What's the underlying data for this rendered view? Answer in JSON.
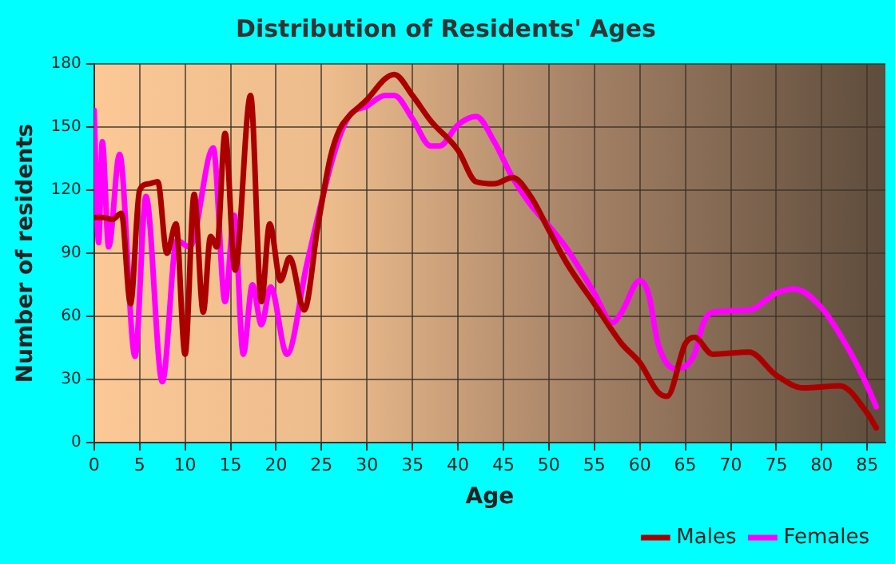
{
  "chart_data": {
    "type": "line",
    "title": "Distribution of Residents' Ages",
    "xlabel": "Age",
    "ylabel": "Number of residents",
    "xlim": [
      0,
      87
    ],
    "xticks": [
      0,
      5,
      10,
      15,
      20,
      25,
      30,
      35,
      40,
      45,
      50,
      55,
      60,
      65,
      70,
      75,
      80,
      85
    ],
    "ylim": [
      0,
      180
    ],
    "yticks": [
      0,
      30,
      60,
      90,
      120,
      150,
      180
    ],
    "grid": true,
    "legend": "bottom right",
    "marker": "none",
    "line_style": "solid",
    "series": [
      {
        "name": "Males",
        "color": "#aa0000",
        "x": [
          0,
          1,
          2,
          3,
          4,
          5,
          6,
          7,
          8,
          9,
          10,
          11,
          12,
          12.8,
          13.5,
          14.4,
          15.5,
          17.2,
          18.4,
          19.3,
          20.5,
          21.5,
          23.1,
          24.6,
          26,
          27,
          28,
          30,
          32,
          33,
          35,
          37,
          40,
          42,
          44,
          46,
          48,
          50,
          52,
          55,
          58,
          60,
          62,
          63,
          65,
          66,
          68,
          72,
          75,
          78,
          82,
          85,
          86
        ],
        "values": [
          107,
          107,
          106,
          109,
          66,
          120,
          123,
          124,
          90,
          104,
          42,
          118,
          62,
          98,
          93,
          147,
          82,
          165,
          67,
          104,
          77,
          88,
          63,
          103,
          136,
          149,
          155,
          163,
          173,
          175,
          165,
          153,
          139,
          124,
          123,
          126,
          117,
          101,
          85,
          66,
          47,
          38,
          24,
          22,
          47,
          50,
          42,
          43,
          32,
          26,
          27,
          14,
          7
        ]
      },
      {
        "name": "Females",
        "color": "#ff00ff",
        "x": [
          0,
          0.5,
          0.9,
          1.6,
          2.8,
          4.5,
          5.7,
          7.5,
          9.1,
          10.5,
          13.1,
          14.4,
          15.4,
          16.4,
          17.4,
          18.4,
          19.4,
          21.2,
          23.4,
          26.5,
          28,
          30,
          32,
          33,
          35,
          37,
          38,
          40,
          42,
          44,
          46,
          48,
          50,
          52,
          55,
          57,
          58,
          60,
          61,
          62,
          64,
          66,
          67,
          68,
          72,
          75,
          77,
          80,
          83,
          85,
          86
        ],
        "values": [
          158,
          95,
          143,
          93,
          137,
          41,
          117,
          29,
          96,
          93,
          140,
          67,
          108,
          42,
          75,
          56,
          74,
          42,
          85,
          139,
          155,
          160,
          165,
          165,
          154,
          141,
          141,
          151,
          155,
          143,
          126,
          113,
          103,
          92,
          71,
          57,
          62,
          77,
          70,
          47,
          35,
          42,
          57,
          62,
          63,
          71,
          73,
          64,
          44,
          27,
          17
        ]
      }
    ]
  }
}
